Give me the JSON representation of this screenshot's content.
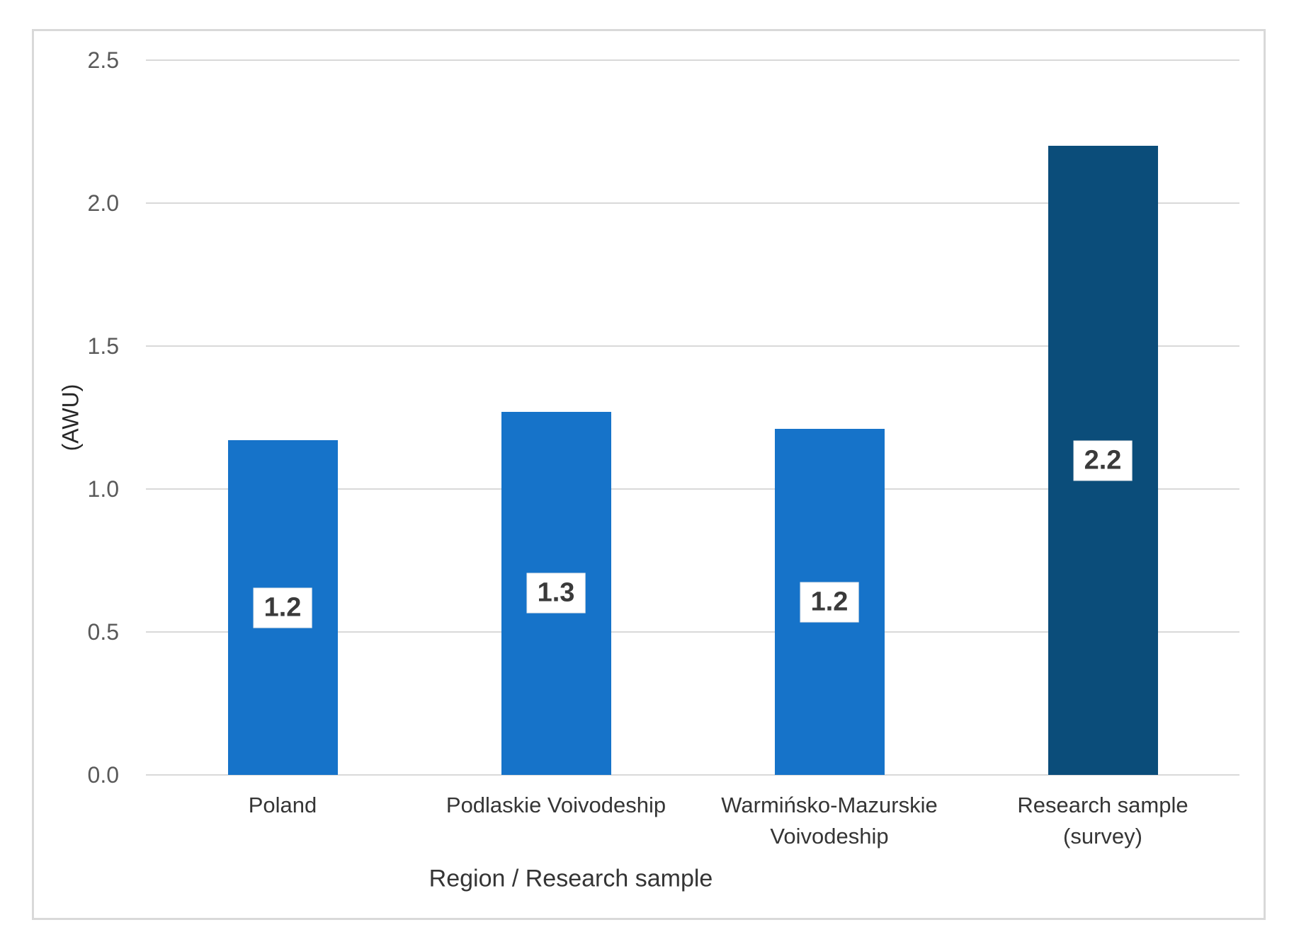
{
  "chart_data": {
    "type": "bar",
    "title": "",
    "xlabel": "Region / Research sample",
    "ylabel": "(AWU)",
    "categories": [
      "Poland",
      "Podlaskie Voivodeship",
      "Warmińsko-Mazurskie Voivodeship",
      "Research sample (survey)"
    ],
    "category_lines": [
      [
        "Poland"
      ],
      [
        "Podlaskie Voivodeship"
      ],
      [
        "Warmińsko-Mazurskie",
        "Voivodeship"
      ],
      [
        "Research sample",
        "(survey)"
      ]
    ],
    "values": [
      1.2,
      1.3,
      1.2,
      2.2
    ],
    "data_labels": [
      "1.2",
      "1.3",
      "1.2",
      "2.2"
    ],
    "bar_heights_awu": [
      1.17,
      1.27,
      1.21,
      2.2
    ],
    "bar_colors": [
      "#1673c9",
      "#1673c9",
      "#1673c9",
      "#0b4d7a"
    ],
    "ylim": [
      0,
      2.5
    ],
    "ytick_step": 0.5,
    "yticks": [
      "0.0",
      "0.5",
      "1.0",
      "1.5",
      "2.0",
      "2.5"
    ],
    "grid": true,
    "gridline_color": "#d9d9d9",
    "legend": false
  }
}
